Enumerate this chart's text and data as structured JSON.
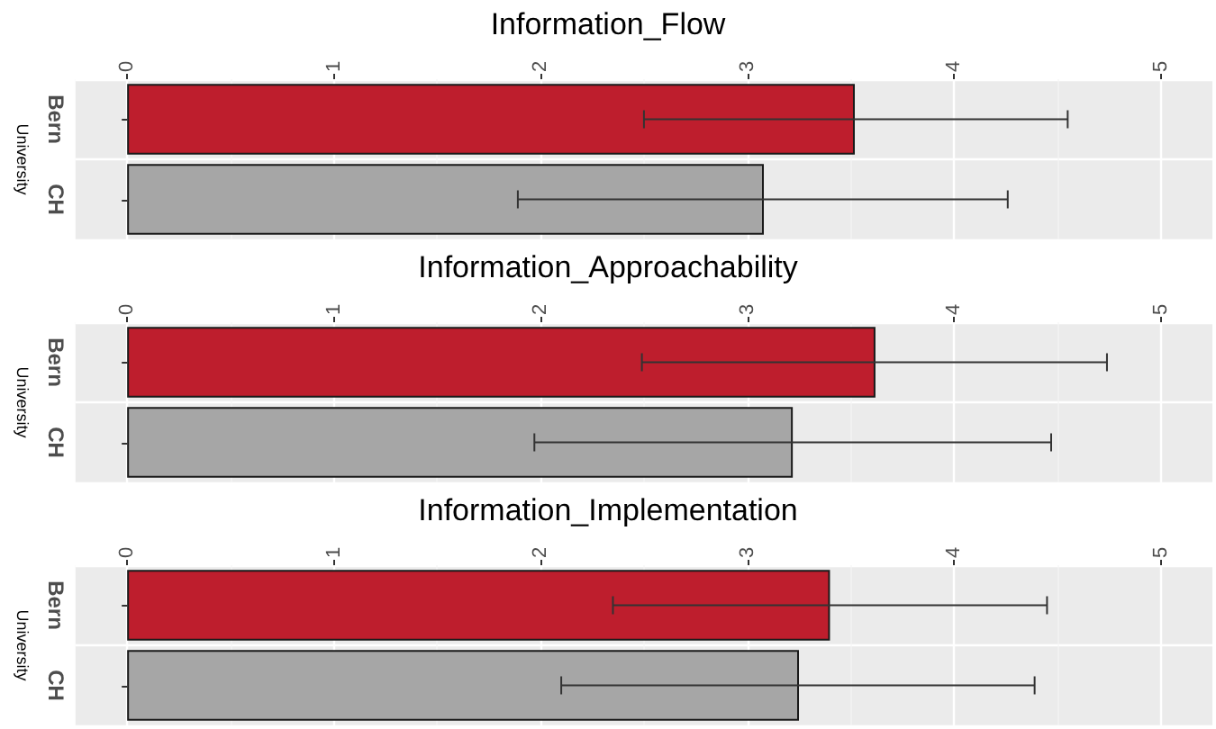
{
  "chart_data": [
    {
      "type": "bar",
      "orientation": "horizontal",
      "title": "Information_Flow",
      "ylabel": "University",
      "categories": [
        "Bern",
        "CH"
      ],
      "values": [
        3.52,
        3.08
      ],
      "colors": [
        "#be1e2d",
        "#a6a6a6"
      ],
      "errors": [
        [
          2.5,
          4.55
        ],
        [
          1.89,
          4.26
        ]
      ],
      "xlim": [
        -0.25,
        5.25
      ],
      "xticks": [
        0,
        1,
        2,
        3,
        4,
        5
      ],
      "grid": true
    },
    {
      "type": "bar",
      "orientation": "horizontal",
      "title": "Information_Approachability",
      "ylabel": "University",
      "categories": [
        "Bern",
        "CH"
      ],
      "values": [
        3.62,
        3.22
      ],
      "colors": [
        "#be1e2d",
        "#a6a6a6"
      ],
      "errors": [
        [
          2.49,
          4.74
        ],
        [
          1.97,
          4.47
        ]
      ],
      "xlim": [
        -0.25,
        5.25
      ],
      "xticks": [
        0,
        1,
        2,
        3,
        4,
        5
      ],
      "grid": true
    },
    {
      "type": "bar",
      "orientation": "horizontal",
      "title": "Information_Implementation",
      "ylabel": "University",
      "categories": [
        "Bern",
        "CH"
      ],
      "values": [
        3.4,
        3.25
      ],
      "colors": [
        "#be1e2d",
        "#a6a6a6"
      ],
      "errors": [
        [
          2.35,
          4.45
        ],
        [
          2.1,
          4.39
        ]
      ],
      "xlim": [
        -0.25,
        5.25
      ],
      "xticks": [
        0,
        1,
        2,
        3,
        4,
        5
      ],
      "grid": true
    }
  ]
}
